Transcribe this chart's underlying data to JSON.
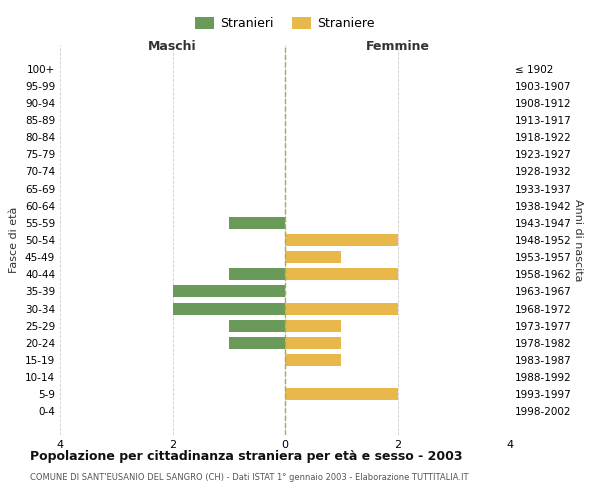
{
  "age_groups": [
    "100+",
    "95-99",
    "90-94",
    "85-89",
    "80-84",
    "75-79",
    "70-74",
    "65-69",
    "60-64",
    "55-59",
    "50-54",
    "45-49",
    "40-44",
    "35-39",
    "30-34",
    "25-29",
    "20-24",
    "15-19",
    "10-14",
    "5-9",
    "0-4"
  ],
  "birth_years": [
    "≤ 1902",
    "1903-1907",
    "1908-1912",
    "1913-1917",
    "1918-1922",
    "1923-1927",
    "1928-1932",
    "1933-1937",
    "1938-1942",
    "1943-1947",
    "1948-1952",
    "1953-1957",
    "1958-1962",
    "1963-1967",
    "1968-1972",
    "1973-1977",
    "1978-1982",
    "1983-1987",
    "1988-1992",
    "1993-1997",
    "1998-2002"
  ],
  "maschi": [
    0,
    0,
    0,
    0,
    0,
    0,
    0,
    0,
    0,
    1,
    0,
    0,
    1,
    2,
    2,
    1,
    1,
    0,
    0,
    0,
    0
  ],
  "femmine": [
    0,
    0,
    0,
    0,
    0,
    0,
    0,
    0,
    0,
    0,
    2,
    1,
    2,
    0,
    2,
    1,
    1,
    1,
    0,
    2,
    0
  ],
  "male_color": "#6a9a5a",
  "female_color": "#e8b84b",
  "xlim": 4,
  "title": "Popolazione per cittadinanza straniera per età e sesso - 2003",
  "subtitle": "COMUNE DI SANT'EUSANIO DEL SANGRO (CH) - Dati ISTAT 1° gennaio 2003 - Elaborazione TUTTITALIA.IT",
  "legend_male": "Stranieri",
  "legend_female": "Straniere",
  "ylabel_left": "Fasce di età",
  "ylabel_right": "Anni di nascita",
  "xlabel_left": "Maschi",
  "xlabel_right": "Femmine",
  "bg_color": "#ffffff",
  "grid_color": "#cccccc",
  "bar_height": 0.7
}
